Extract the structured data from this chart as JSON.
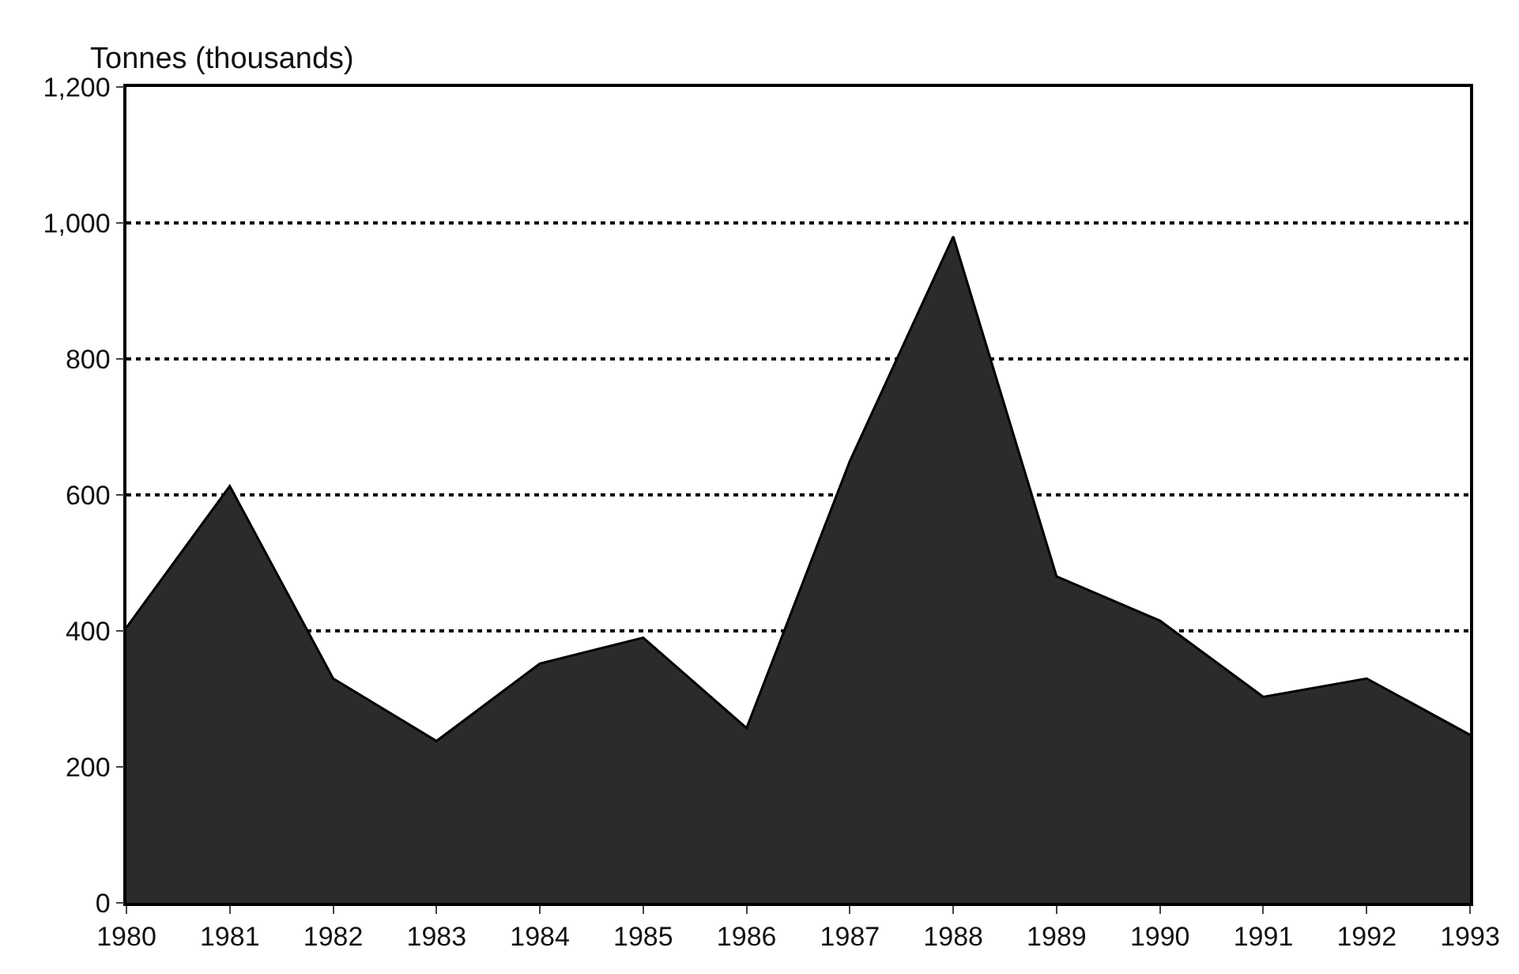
{
  "chart_data": {
    "type": "area",
    "ylabel": "Tonnes (thousands)",
    "x": [
      1980,
      1981,
      1982,
      1983,
      1984,
      1985,
      1986,
      1987,
      1988,
      1989,
      1990,
      1991,
      1992,
      1993
    ],
    "series": [
      {
        "color": "#2b2b2b",
        "values": [
          405,
          613,
          330,
          238,
          352,
          390,
          257,
          650,
          980,
          480,
          415,
          303,
          330,
          247
        ]
      }
    ],
    "xlim": [
      1980,
      1993
    ],
    "xticks": [
      1980,
      1981,
      1982,
      1983,
      1984,
      1985,
      1986,
      1987,
      1988,
      1989,
      1990,
      1991,
      1992,
      1993
    ],
    "ylim": [
      0,
      1200
    ],
    "yticks": [
      {
        "value": 0,
        "label": "0"
      },
      {
        "value": 200,
        "label": "200"
      },
      {
        "value": 400,
        "label": "400"
      },
      {
        "value": 600,
        "label": "600"
      },
      {
        "value": 800,
        "label": "800"
      },
      {
        "value": 1000,
        "label": "1,000"
      },
      {
        "value": 1200,
        "label": "1,200"
      }
    ],
    "grid": "y",
    "line_style": "solid"
  }
}
